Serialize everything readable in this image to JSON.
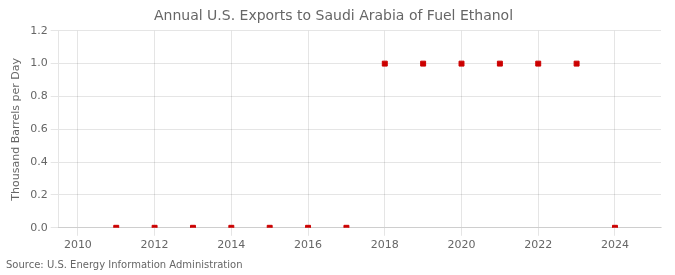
{
  "chart_data": {
    "type": "scatter",
    "title": "Annual U.S. Exports to Saudi Arabia of Fuel Ethanol",
    "ylabel": "Thousand Barrels per Day",
    "annotations": [
      "Source: U.S. Energy Information Administration"
    ],
    "x": [
      2011,
      2012,
      2013,
      2014,
      2015,
      2016,
      2017,
      2018,
      2019,
      2020,
      2021,
      2022,
      2023,
      2024
    ],
    "values": [
      0.0,
      0.0,
      0.0,
      0.0,
      0.0,
      0.0,
      0.0,
      1.0,
      1.0,
      1.0,
      1.0,
      1.0,
      1.0,
      0.0
    ],
    "color": "#cc0000",
    "marker": "square",
    "xlim": [
      2009.5,
      2025.2
    ],
    "xticks": [
      2010,
      2012,
      2014,
      2016,
      2018,
      2020,
      2022,
      2024
    ],
    "ylim": [
      0.0,
      1.2
    ],
    "yticks": [
      {
        "value": 0.0,
        "label": "0.0"
      },
      0.2,
      0.4,
      0.6,
      0.8,
      {
        "value": 1.0,
        "label": "1.0"
      },
      1.2
    ],
    "grid": true
  }
}
